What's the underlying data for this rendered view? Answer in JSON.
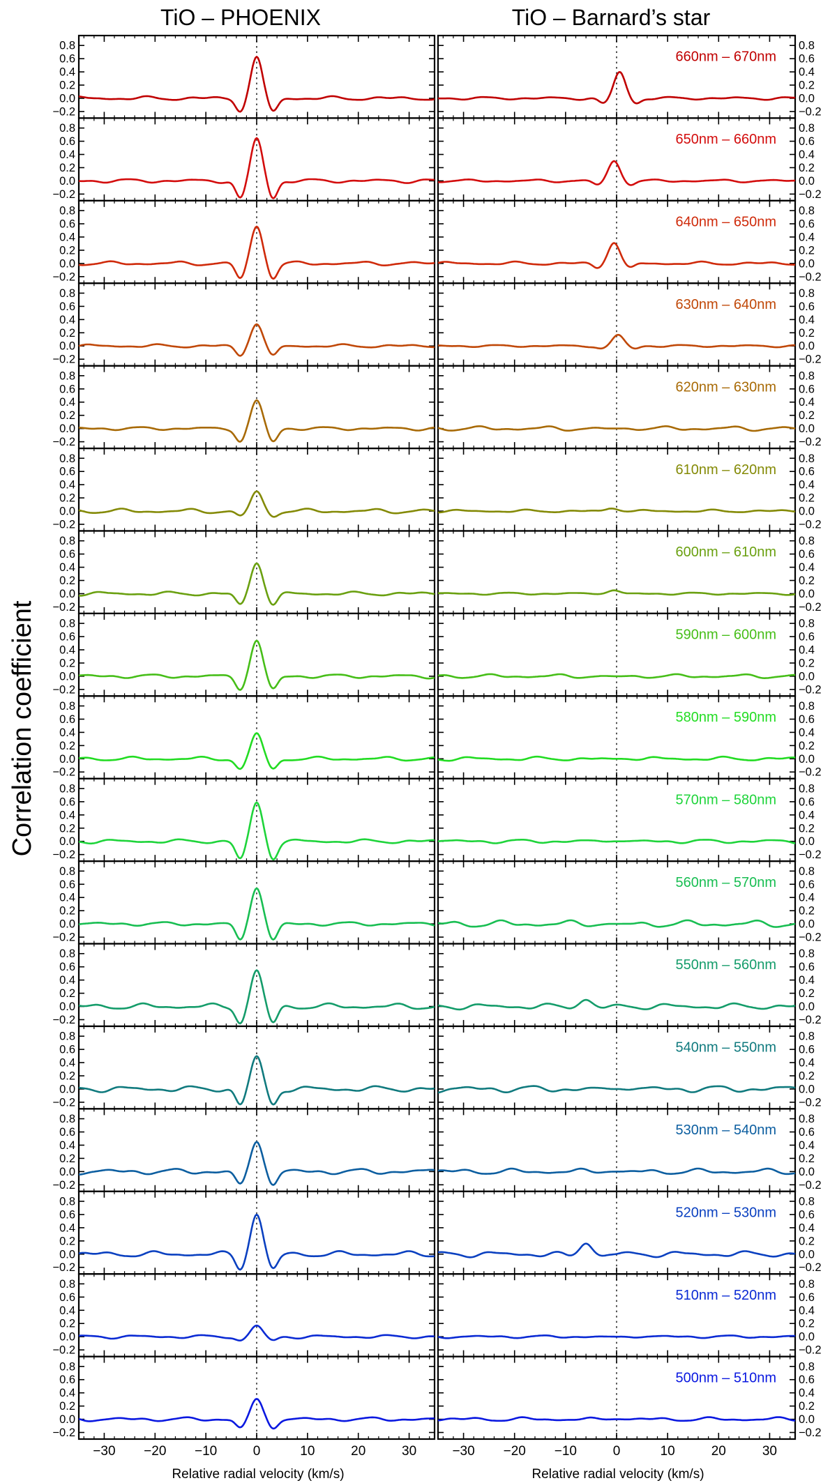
{
  "chart_data": {
    "type": "line",
    "title_left": "TiO – PHOENIX",
    "title_right": "TiO – Barnard’s star",
    "ylabel": "Correlation coefficient",
    "xlabel": "Relative radial velocity (km/s)",
    "xlim": [
      -35,
      35
    ],
    "ylim": [
      -0.3,
      0.95
    ],
    "xticks": [
      -30,
      -20,
      -10,
      0,
      10,
      20,
      30
    ],
    "xtick_labels": [
      "−30",
      "−20",
      "−10",
      "0",
      "10",
      "20",
      "30"
    ],
    "yticks": [
      -0.2,
      0.0,
      0.2,
      0.4,
      0.6,
      0.8
    ],
    "ytick_labels": [
      "−0.2",
      "0.0",
      "0.2",
      "0.4",
      "0.6",
      "0.8"
    ],
    "reference_line_x": 0,
    "panels": [
      {
        "band": "660nm – 670nm",
        "color": "#c00000",
        "phoenix": {
          "peak": 0.63,
          "dip": -0.2,
          "wiggle": 0.035
        },
        "barnard": {
          "peak": 0.4,
          "center": 0.6,
          "dip": -0.08,
          "wiggle": 0.025
        }
      },
      {
        "band": "650nm – 660nm",
        "color": "#d30c0c",
        "phoenix": {
          "peak": 0.65,
          "dip": -0.27,
          "wiggle": 0.035
        },
        "barnard": {
          "peak": 0.3,
          "center": -0.5,
          "dip": -0.06,
          "wiggle": 0.025
        }
      },
      {
        "band": "640nm – 650nm",
        "color": "#cf2a0a",
        "phoenix": {
          "peak": 0.56,
          "dip": -0.23,
          "wiggle": 0.035
        },
        "barnard": {
          "peak": 0.31,
          "center": -0.5,
          "dip": -0.07,
          "wiggle": 0.03
        }
      },
      {
        "band": "630nm – 640nm",
        "color": "#c04808",
        "phoenix": {
          "peak": 0.33,
          "dip": -0.15,
          "wiggle": 0.03
        },
        "barnard": {
          "peak": 0.17,
          "center": 0.3,
          "dip": -0.04,
          "wiggle": 0.02
        }
      },
      {
        "band": "620nm – 630nm",
        "color": "#a86a06",
        "phoenix": {
          "peak": 0.43,
          "dip": -0.2,
          "wiggle": 0.03
        },
        "barnard": {
          "peak": 0.0,
          "center": 0,
          "dip": 0.0,
          "wiggle": 0.04
        }
      },
      {
        "band": "610nm – 620nm",
        "color": "#848a06",
        "phoenix": {
          "peak": 0.3,
          "dip": -0.08,
          "wiggle": 0.04
        },
        "barnard": {
          "peak": 0.04,
          "center": -1.0,
          "dip": 0.0,
          "wiggle": 0.025
        }
      },
      {
        "band": "600nm – 610nm",
        "color": "#6aa010",
        "phoenix": {
          "peak": 0.46,
          "dip": -0.17,
          "wiggle": 0.035
        },
        "barnard": {
          "peak": 0.05,
          "center": -0.5,
          "dip": 0.0,
          "wiggle": 0.02
        }
      },
      {
        "band": "590nm – 600nm",
        "color": "#46be18",
        "phoenix": {
          "peak": 0.54,
          "dip": -0.2,
          "wiggle": 0.035
        },
        "barnard": {
          "peak": 0.0,
          "center": 0,
          "dip": 0.0,
          "wiggle": 0.035
        }
      },
      {
        "band": "580nm – 590nm",
        "color": "#22dc22",
        "phoenix": {
          "peak": 0.39,
          "dip": -0.16,
          "wiggle": 0.035
        },
        "barnard": {
          "peak": 0.0,
          "center": 0,
          "dip": 0.0,
          "wiggle": 0.035
        }
      },
      {
        "band": "570nm – 580nm",
        "color": "#1ed43a",
        "phoenix": {
          "peak": 0.59,
          "dip": -0.27,
          "wiggle": 0.035
        },
        "barnard": {
          "peak": 0.0,
          "center": 0,
          "dip": 0.0,
          "wiggle": 0.035
        }
      },
      {
        "band": "560nm – 570nm",
        "color": "#18be52",
        "phoenix": {
          "peak": 0.54,
          "dip": -0.25,
          "wiggle": 0.035
        },
        "barnard": {
          "peak": 0.0,
          "center": 0,
          "dip": 0.0,
          "wiggle": 0.06
        }
      },
      {
        "band": "550nm – 560nm",
        "color": "#149c6a",
        "phoenix": {
          "peak": 0.55,
          "dip": -0.25,
          "wiggle": 0.05
        },
        "barnard": {
          "peak": 0.1,
          "center": -6.0,
          "dip": -0.02,
          "wiggle": 0.05
        }
      },
      {
        "band": "540nm – 550nm",
        "color": "#107a7e",
        "phoenix": {
          "peak": 0.5,
          "dip": -0.24,
          "wiggle": 0.05
        },
        "barnard": {
          "peak": 0.0,
          "center": 0,
          "dip": 0.0,
          "wiggle": 0.06
        }
      },
      {
        "band": "530nm – 540nm",
        "color": "#0c5ea0",
        "phoenix": {
          "peak": 0.45,
          "dip": -0.2,
          "wiggle": 0.05
        },
        "barnard": {
          "peak": 0.0,
          "center": 0,
          "dip": 0.0,
          "wiggle": 0.05
        }
      },
      {
        "band": "520nm – 530nm",
        "color": "#0a40c0",
        "phoenix": {
          "peak": 0.6,
          "dip": -0.23,
          "wiggle": 0.05
        },
        "barnard": {
          "peak": 0.16,
          "center": -6.0,
          "dip": -0.03,
          "wiggle": 0.05
        }
      },
      {
        "band": "510nm – 520nm",
        "color": "#0a2ad4",
        "phoenix": {
          "peak": 0.17,
          "dip": -0.06,
          "wiggle": 0.03
        },
        "barnard": {
          "peak": 0.0,
          "center": 0,
          "dip": 0.0,
          "wiggle": 0.025
        }
      },
      {
        "band": "500nm – 510nm",
        "color": "#0a18e0",
        "phoenix": {
          "peak": 0.31,
          "dip": -0.13,
          "wiggle": 0.035
        },
        "barnard": {
          "peak": 0.0,
          "center": 0,
          "dip": 0.0,
          "wiggle": 0.035
        }
      }
    ]
  }
}
